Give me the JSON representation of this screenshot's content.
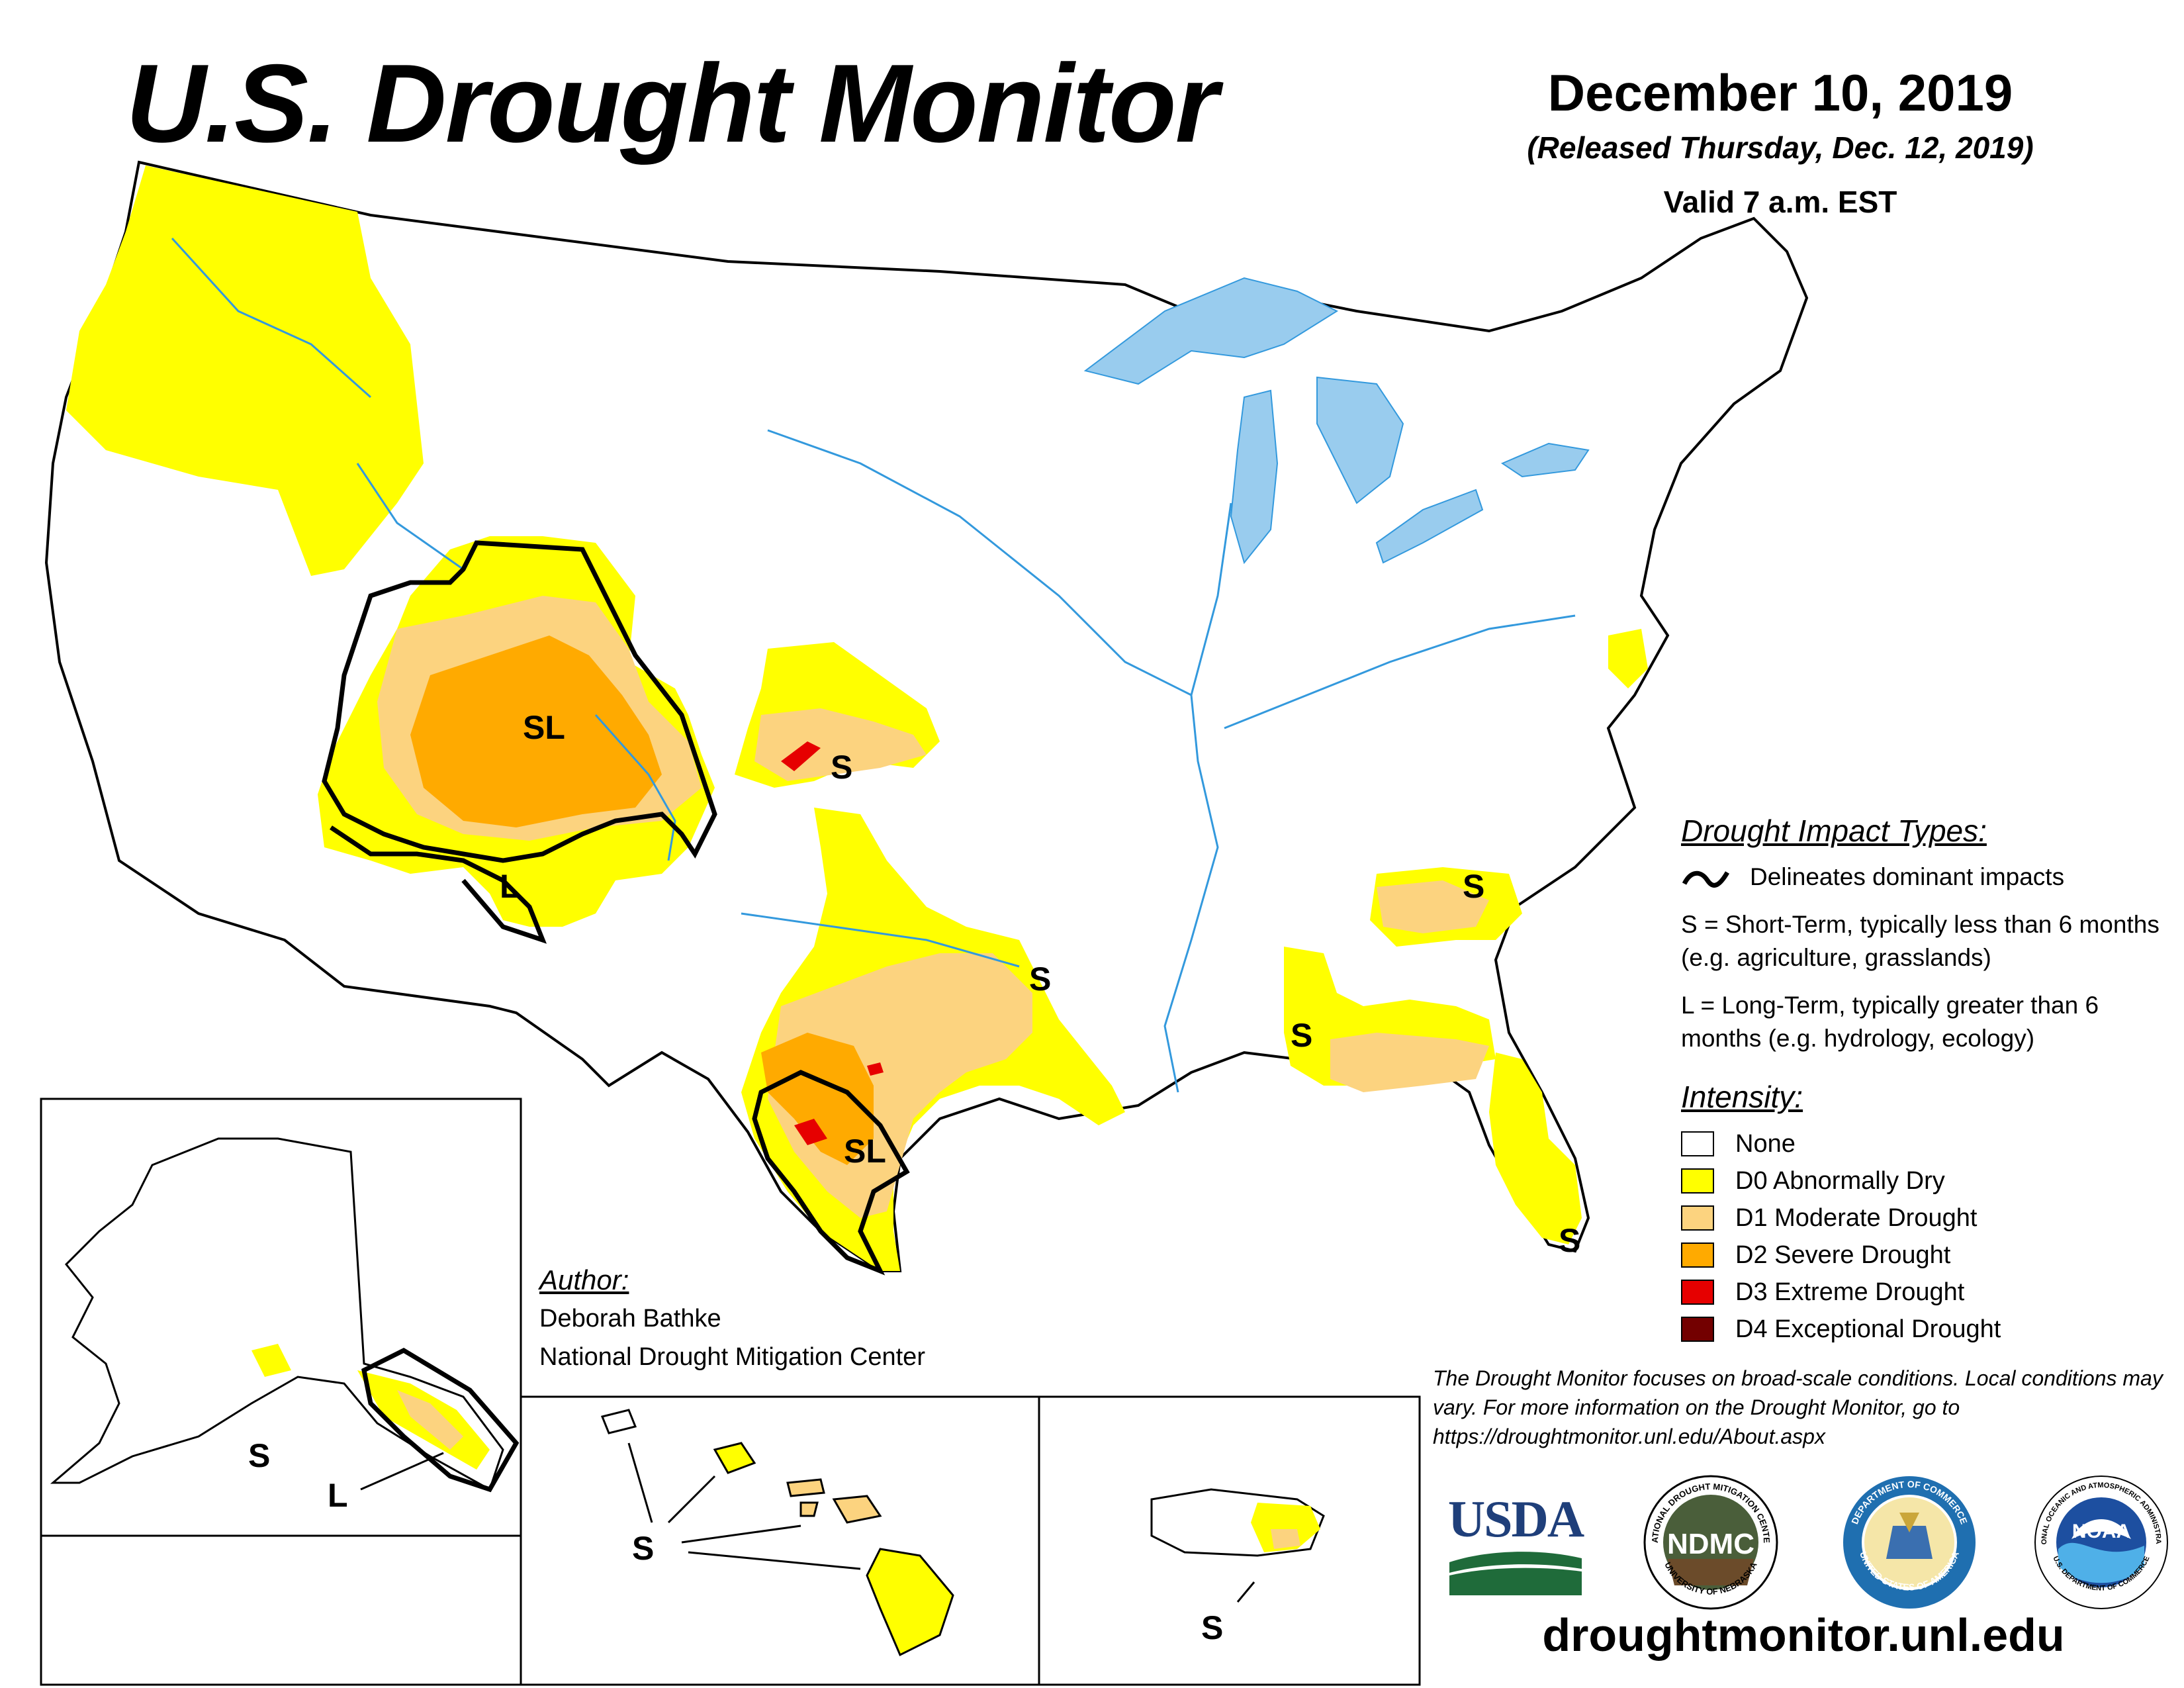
{
  "title": "U.S. Drought Monitor",
  "date": "December 10, 2019",
  "released": "(Released Thursday, Dec. 12, 2019)",
  "valid": "Valid 7 a.m. EST",
  "impact_types": {
    "heading": "Drought Impact Types:",
    "delineates": "Delineates dominant impacts",
    "short_term": "S = Short-Term, typically less than 6 months (e.g. agriculture, grasslands)",
    "long_term": "L = Long-Term, typically greater than 6 months (e.g. hydrology, ecology)"
  },
  "intensity": {
    "heading": "Intensity:",
    "levels": [
      {
        "label": "None",
        "color": "#ffffff"
      },
      {
        "label": "D0 Abnormally Dry",
        "color": "#ffff00"
      },
      {
        "label": "D1 Moderate Drought",
        "color": "#fcd37f"
      },
      {
        "label": "D2 Severe Drought",
        "color": "#ffaa00"
      },
      {
        "label": "D3 Extreme Drought",
        "color": "#e60000"
      },
      {
        "label": "D4 Exceptional Drought",
        "color": "#730000"
      }
    ]
  },
  "author": {
    "heading": "Author:",
    "name": "Deborah Bathke",
    "org": "National Drought Mitigation Center"
  },
  "note": "The Drought Monitor focuses on broad-scale conditions. Local conditions may vary. For more information on the Drought Monitor, go to https://droughtmonitor.unl.edu/About.aspx",
  "logos": {
    "usda": "USDA",
    "ndmc": "NDMC",
    "ndmc_ring": "NATIONAL DROUGHT MITIGATION CENTER",
    "ndmc_ring_bottom": "UNIVERSITY OF NEBRASKA",
    "doc_ring": "DEPARTMENT OF COMMERCE",
    "doc_ring_bottom": "UNITED STATES OF AMERICA",
    "noaa": "NOAA",
    "noaa_ring": "NATIONAL OCEANIC AND ATMOSPHERIC ADMINISTRATION",
    "noaa_ring_bottom": "U.S. DEPARTMENT OF COMMERCE"
  },
  "url": "droughtmonitor.unl.edu",
  "map_labels": {
    "sl_west": "SL",
    "s_kansas": "S",
    "l_arizona": "L",
    "s_texas": "S",
    "sl_texas": "SL",
    "s_georgia": "S",
    "s_gulf": "S",
    "s_florida": "S",
    "s_alaska": "S",
    "l_alaska": "L",
    "s_hawaii": "S",
    "s_puertorico": "S"
  },
  "colors": {
    "water": "#99ccee",
    "river": "#3399dd",
    "d0": "#ffff00",
    "d1": "#fcd37f",
    "d2": "#ffaa00",
    "d3": "#e60000"
  }
}
